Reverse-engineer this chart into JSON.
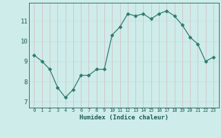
{
  "x": [
    0,
    1,
    2,
    3,
    4,
    5,
    6,
    7,
    8,
    9,
    10,
    11,
    12,
    13,
    14,
    15,
    16,
    17,
    18,
    19,
    20,
    21,
    22,
    23
  ],
  "y": [
    9.3,
    9.0,
    8.6,
    7.7,
    7.2,
    7.6,
    8.3,
    8.3,
    8.6,
    8.6,
    10.3,
    10.7,
    11.35,
    11.25,
    11.35,
    11.1,
    11.35,
    11.5,
    11.25,
    10.8,
    10.2,
    9.85,
    9.0,
    9.2
  ],
  "line_color": "#2d7a6e",
  "marker": "D",
  "marker_size": 2.5,
  "bg_color": "#ceecea",
  "grid_color_v": "#c8e8e5",
  "grid_color_h": "#c0dedd",
  "xlabel": "Humidex (Indice chaleur)",
  "xlabel_color": "#1a5c52",
  "tick_color": "#1a5c52",
  "ylim": [
    6.7,
    11.9
  ],
  "yticks": [
    7,
    8,
    9,
    10,
    11
  ],
  "xticks": [
    0,
    1,
    2,
    3,
    4,
    5,
    6,
    7,
    8,
    9,
    10,
    11,
    12,
    13,
    14,
    15,
    16,
    17,
    18,
    19,
    20,
    21,
    22,
    23
  ]
}
